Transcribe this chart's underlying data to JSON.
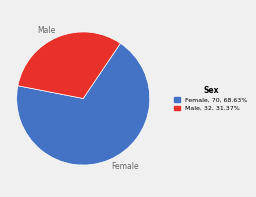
{
  "title": "Sex",
  "labels": [
    "Female",
    "Male"
  ],
  "values": [
    70,
    32
  ],
  "percentages": [
    68.63,
    31.37
  ],
  "colors": [
    "#4472C4",
    "#E8312A"
  ],
  "legend_labels": [
    "Female, 70, 68.63%",
    "Male, 32, 31.37%"
  ],
  "background_color": "#f0f0f0",
  "startangle": 56,
  "slice_labels": [
    "Female",
    "Male"
  ]
}
